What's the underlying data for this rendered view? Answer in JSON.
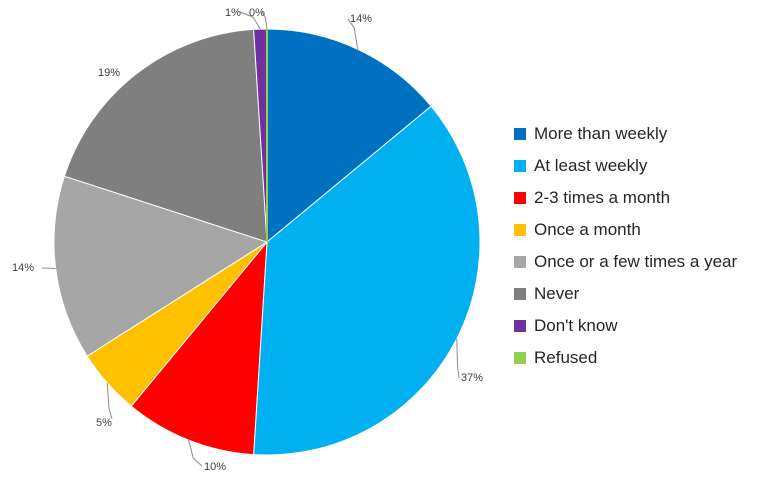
{
  "chart_data": {
    "type": "pie",
    "categories": [
      "More than weekly",
      "At least weekly",
      "2-3 times a month",
      "Once a month",
      "Once or a few times a year",
      "Never",
      "Don't know",
      "Refused"
    ],
    "values": [
      14,
      37,
      10,
      5,
      14,
      19,
      1,
      0
    ],
    "labels": [
      "14%",
      "37%",
      "10%",
      "5%",
      "14%",
      "19%",
      "1%",
      "0%"
    ],
    "colors": [
      "#0070C0",
      "#00B0F0",
      "#FF0000",
      "#FFC000",
      "#A6A6A6",
      "#7F7F7F",
      "#7030A0",
      "#92D050"
    ],
    "legend_position": "right",
    "start_angle": "12 o'clock",
    "direction": "clockwise"
  }
}
